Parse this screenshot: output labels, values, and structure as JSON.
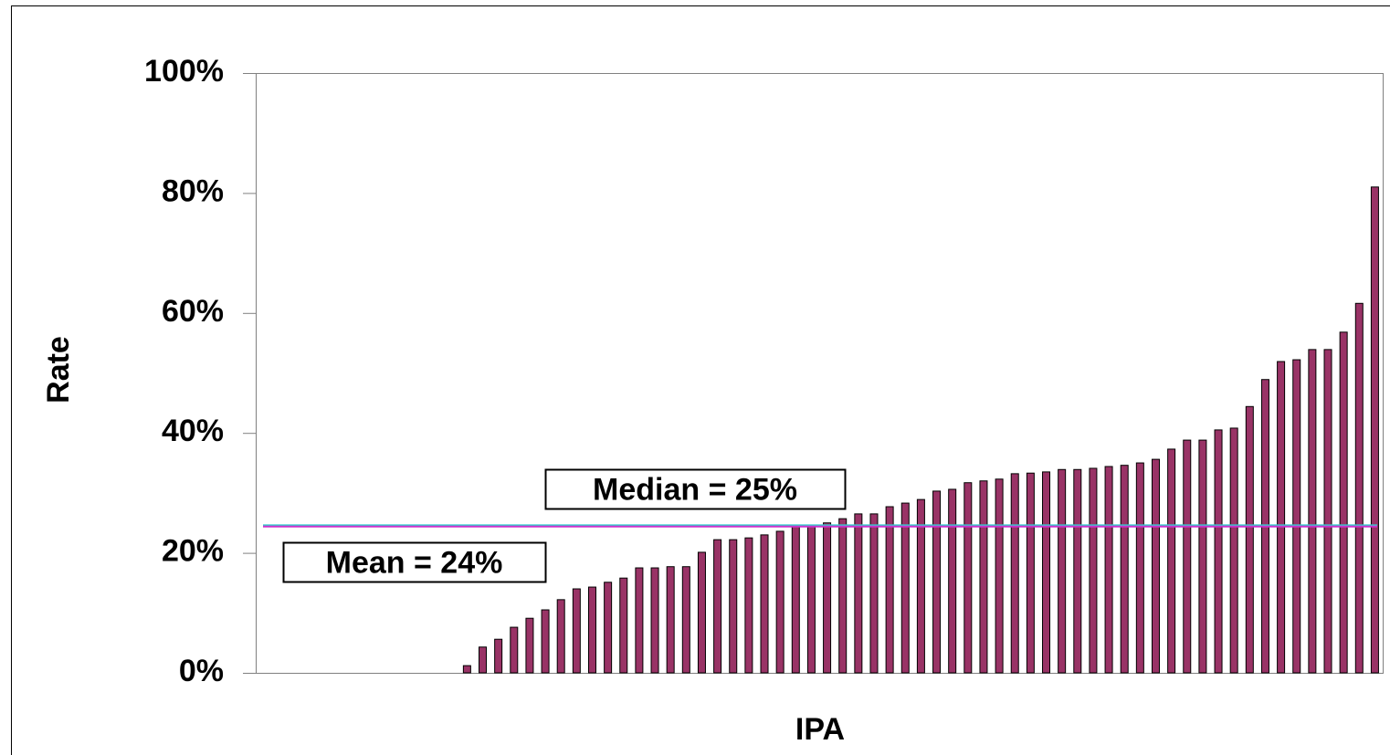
{
  "chart_data": {
    "type": "bar",
    "y_label": "Rate",
    "x_label": "IPA",
    "color": "#993366",
    "categories": [
      null,
      null,
      null,
      null,
      null,
      null,
      null,
      null,
      null,
      null,
      null,
      null,
      null,
      null,
      null,
      null,
      null,
      null,
      null,
      null,
      null,
      null,
      null,
      null,
      null,
      null,
      null,
      null,
      null,
      null,
      null,
      null,
      null,
      null,
      null,
      null,
      null,
      null,
      null,
      null,
      null,
      null,
      null,
      null,
      null,
      null,
      null,
      null,
      null,
      null,
      null,
      null,
      null,
      null,
      null,
      null,
      null,
      null,
      null,
      null,
      null,
      null,
      null,
      null,
      null,
      null,
      null,
      null,
      null,
      null,
      null,
      null
    ],
    "values": [
      0,
      0,
      0,
      0,
      0,
      0,
      0,
      0,
      0,
      0,
      0,
      0,
      0,
      1.2,
      4.3,
      5.6,
      7.6,
      9.1,
      10.5,
      12.2,
      14.0,
      14.3,
      15.1,
      15.8,
      17.5,
      17.5,
      17.7,
      17.7,
      20.1,
      22.2,
      22.2,
      22.5,
      23.0,
      23.6,
      24.5,
      24.5,
      25.0,
      25.7,
      26.5,
      26.5,
      27.7,
      28.3,
      28.9,
      30.3,
      30.6,
      31.7,
      32.0,
      32.3,
      33.2,
      33.3,
      33.5,
      33.9,
      33.9,
      34.1,
      34.4,
      34.6,
      35.0,
      35.6,
      37.3,
      38.8,
      38.8,
      40.5,
      40.8,
      44.4,
      48.9,
      51.9,
      52.2,
      53.9,
      53.9,
      56.8,
      61.6,
      81.0
    ],
    "ylim": [
      0,
      100
    ],
    "yticks": [
      {
        "value": 0,
        "label": "0%"
      },
      {
        "value": 20,
        "label": "20%"
      },
      {
        "value": 40,
        "label": "40%"
      },
      {
        "value": 60,
        "label": "60%"
      },
      {
        "value": 80,
        "label": "80%"
      },
      {
        "value": 100,
        "label": "100%"
      }
    ],
    "reference_lines": [
      {
        "label": "Median = 25%",
        "value": 24.6,
        "color": "#33cccc"
      },
      {
        "label": "Mean = 24%",
        "value": 24.4,
        "color": "#cc33cc"
      }
    ]
  }
}
